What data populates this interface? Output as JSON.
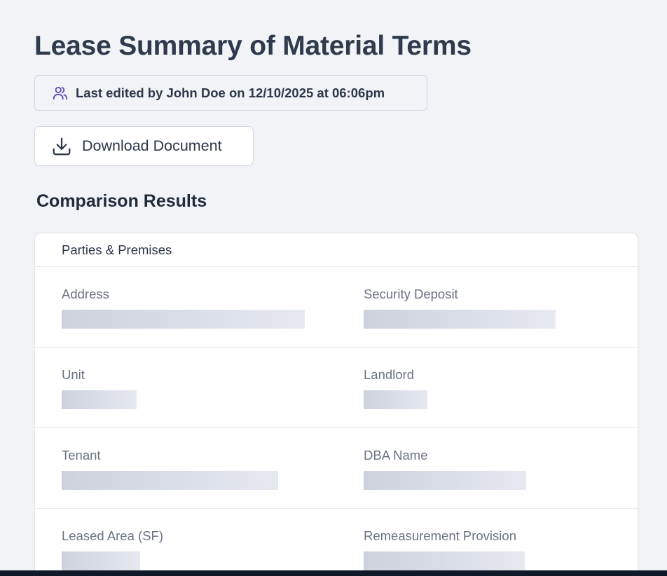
{
  "page": {
    "title": "Lease Summary of Material Terms",
    "last_edited": "Last edited by John Doe on 12/10/2025 at 06:06pm",
    "download_label": "Download Document",
    "section_title": "Comparison Results"
  },
  "card": {
    "header": "Parties & Premises",
    "rows": [
      {
        "left": {
          "label": "Address",
          "value_state": "loading"
        },
        "right": {
          "label": "Security Deposit",
          "value_state": "loading"
        }
      },
      {
        "left": {
          "label": "Unit",
          "value_state": "loading"
        },
        "right": {
          "label": "Landlord",
          "value_state": "loading"
        }
      },
      {
        "left": {
          "label": "Tenant",
          "value_state": "loading"
        },
        "right": {
          "label": "DBA Name",
          "value_state": "loading"
        }
      },
      {
        "left": {
          "label": "Leased Area (SF)",
          "value_state": "loading"
        },
        "right": {
          "label": "Remeasurement Provision",
          "value_state": "loading"
        }
      }
    ]
  },
  "icons": {
    "edited": "users-icon",
    "download": "download-icon"
  },
  "colors": {
    "accent_icon": "#5b4bb7",
    "background": "#f1f3f7",
    "skeleton": "#cdd2dd"
  }
}
